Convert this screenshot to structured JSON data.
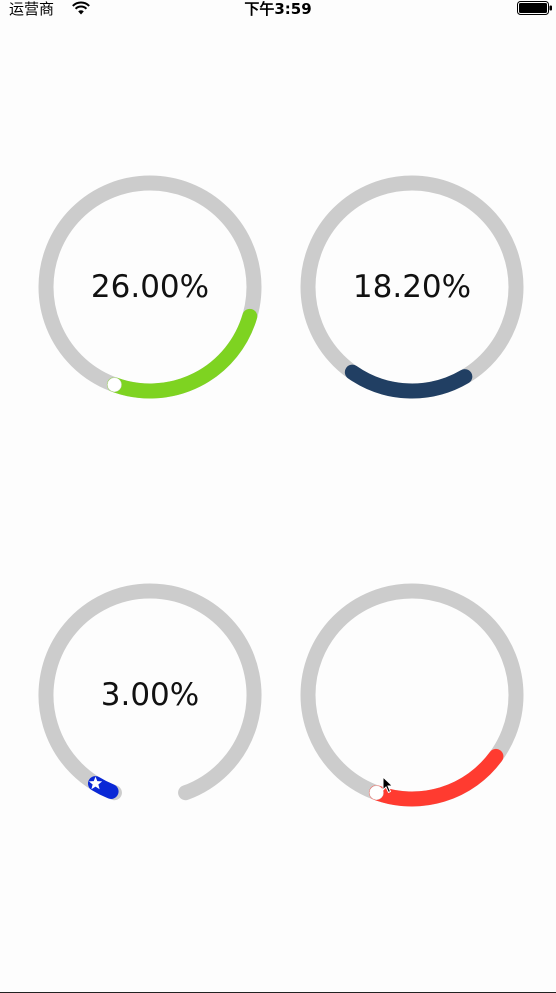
{
  "status_bar": {
    "carrier": "运营商",
    "time": "下午3:59",
    "wifi_icon": "wifi-icon",
    "battery_icon": "battery-icon"
  },
  "rings": [
    {
      "id": "ring-1",
      "label": "26.00%",
      "progress": 0.26,
      "color": "#7ed321",
      "track_color": "#cccccc",
      "gap_degrees": 0,
      "start_degrees": 90,
      "clockwise": true,
      "thumb": "circle-thumb"
    },
    {
      "id": "ring-2",
      "label": "18.20%",
      "progress": 0.182,
      "color": "#213f63",
      "track_color": "#cccccc",
      "gap_degrees": 0,
      "start_degrees": 90,
      "clockwise": true,
      "thumb": ""
    },
    {
      "id": "ring-3",
      "label": "3.00%",
      "progress": 0.03,
      "color": "#0a28d6",
      "track_color": "#cccccc",
      "gap_degrees": 40,
      "start_degrees": 102,
      "clockwise": false,
      "thumb": "star-thumb"
    },
    {
      "id": "ring-4",
      "label": "",
      "progress": 0.205,
      "color": "#ff3b30",
      "track_color": "#cccccc",
      "gap_degrees": 0,
      "start_degrees": 90,
      "clockwise": true,
      "thumb": "circle-thumb"
    }
  ]
}
